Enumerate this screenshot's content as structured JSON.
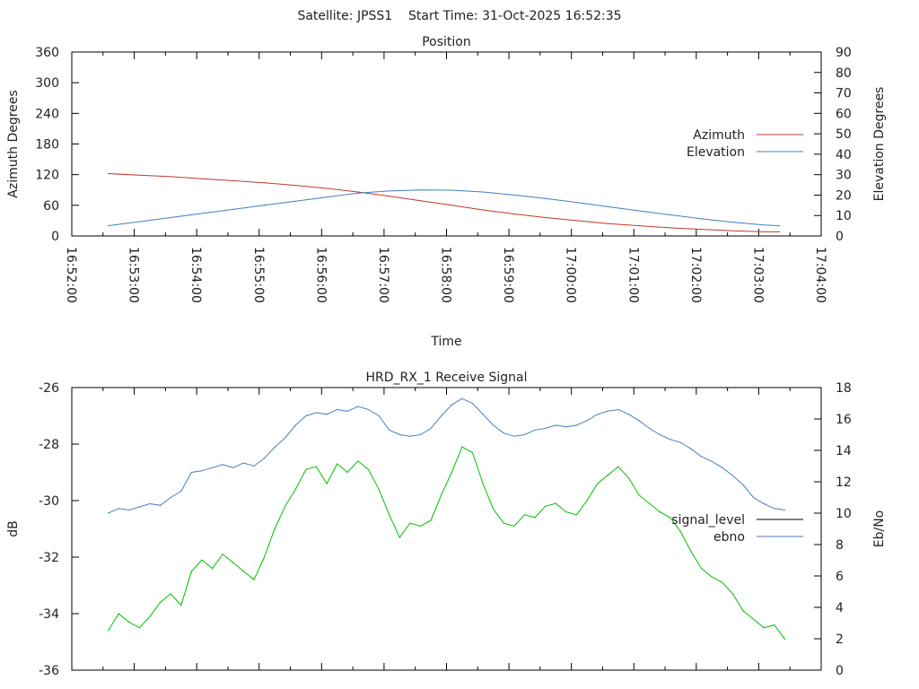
{
  "header": {
    "title": "Satellite: JPSS1    Start Time: 31-Oct-2025 16:52:35"
  },
  "colors": {
    "azimuth": "#c0392b",
    "elevation": "#3f7fc7",
    "signal_level": "#00c000",
    "signal_legend": "#000000",
    "ebno": "#4a7fc1"
  },
  "chart_data": [
    {
      "type": "line",
      "title": "Position",
      "xlabel": "Time",
      "ylabel": "Azimuth Degrees",
      "y2label": "Elevation Degrees",
      "xlim_seconds_from_165200": [
        0,
        720
      ],
      "x_tick_labels": [
        "16:52:00",
        "16:53:00",
        "16:54:00",
        "16:55:00",
        "16:56:00",
        "16:57:00",
        "16:58:00",
        "16:59:00",
        "17:00:00",
        "17:01:00",
        "17:02:00",
        "17:03:00",
        "17:04:00"
      ],
      "ylim": [
        0,
        360
      ],
      "y_ticks": [
        0,
        60,
        120,
        180,
        240,
        300,
        360
      ],
      "y2lim": [
        0,
        90
      ],
      "y2_ticks": [
        0,
        10,
        20,
        30,
        40,
        50,
        60,
        70,
        80,
        90
      ],
      "legend_position": "right",
      "x_seconds": [
        35,
        65,
        95,
        125,
        155,
        185,
        215,
        245,
        275,
        305,
        335,
        365,
        395,
        425,
        455,
        485,
        515,
        545,
        575,
        605,
        635,
        665,
        680
      ],
      "series": [
        {
          "name": "Azimuth",
          "axis": "y",
          "values": [
            122,
            119,
            116,
            112,
            108,
            104,
            99,
            93,
            86,
            78,
            69,
            60,
            51,
            43,
            36,
            30,
            24,
            20,
            16,
            13,
            10,
            8,
            8
          ]
        },
        {
          "name": "Elevation",
          "axis": "y2",
          "values": [
            5,
            7,
            9,
            11,
            13,
            15,
            17,
            19,
            21,
            22,
            22.5,
            22.4,
            21.5,
            20,
            18.3,
            16.4,
            14.3,
            12.3,
            10.3,
            8.4,
            6.7,
            5.4,
            5
          ]
        }
      ]
    },
    {
      "type": "line",
      "title": "HRD_RX_1 Receive Signal",
      "ylabel": "dB",
      "y2label": "Eb/No",
      "xlim_seconds_from_165200": [
        0,
        720
      ],
      "ylim": [
        -36,
        -26
      ],
      "y_ticks": [
        -36,
        -34,
        -32,
        -30,
        -28,
        -26
      ],
      "y2lim": [
        0,
        18
      ],
      "y2_ticks": [
        0,
        2,
        4,
        6,
        8,
        10,
        12,
        14,
        16,
        18
      ],
      "legend_position": "right",
      "x_seconds_start": 35,
      "x_seconds_step": 10,
      "series": [
        {
          "name": "signal_level",
          "axis": "y",
          "values": [
            -34.6,
            -34.0,
            -34.3,
            -34.5,
            -34.1,
            -33.6,
            -33.3,
            -33.7,
            -32.5,
            -32.1,
            -32.4,
            -31.9,
            -32.2,
            -32.5,
            -32.8,
            -32.0,
            -31.0,
            -30.2,
            -29.6,
            -28.9,
            -28.8,
            -29.4,
            -28.7,
            -29.0,
            -28.6,
            -28.9,
            -29.6,
            -30.5,
            -31.3,
            -30.8,
            -30.9,
            -30.7,
            -29.8,
            -29.0,
            -28.1,
            -28.3,
            -29.4,
            -30.3,
            -30.8,
            -30.9,
            -30.5,
            -30.6,
            -30.2,
            -30.1,
            -30.4,
            -30.5,
            -30.0,
            -29.4,
            -29.1,
            -28.8,
            -29.2,
            -29.8,
            -30.1,
            -30.4,
            -30.6,
            -31.1,
            -31.8,
            -32.4,
            -32.7,
            -32.9,
            -33.3,
            -33.9,
            -34.2,
            -34.5,
            -34.4,
            -34.9
          ]
        },
        {
          "name": "ebno",
          "axis": "y2",
          "values": [
            10.0,
            10.3,
            10.2,
            10.4,
            10.6,
            10.5,
            11.0,
            11.4,
            12.6,
            12.7,
            12.9,
            13.1,
            12.9,
            13.2,
            13.0,
            13.5,
            14.2,
            14.8,
            15.6,
            16.2,
            16.4,
            16.3,
            16.6,
            16.5,
            16.8,
            16.6,
            16.2,
            15.3,
            15.0,
            14.9,
            15.0,
            15.4,
            16.2,
            16.9,
            17.3,
            17.0,
            16.3,
            15.6,
            15.1,
            14.9,
            15.0,
            15.3,
            15.4,
            15.6,
            15.5,
            15.6,
            15.9,
            16.3,
            16.5,
            16.6,
            16.3,
            15.9,
            15.4,
            15.0,
            14.7,
            14.5,
            14.1,
            13.6,
            13.3,
            12.9,
            12.4,
            11.8,
            11.0,
            10.6,
            10.3,
            10.2
          ]
        }
      ]
    }
  ]
}
